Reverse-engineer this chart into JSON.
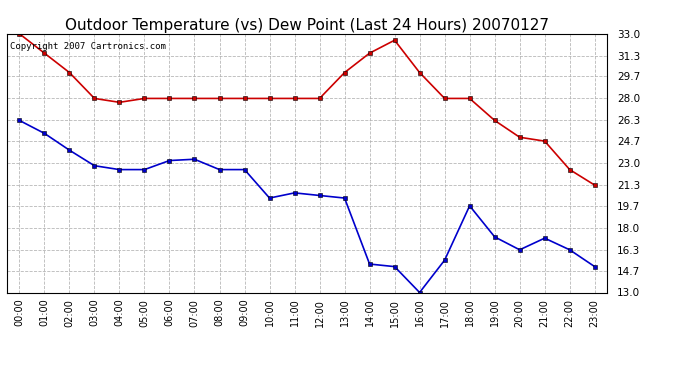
{
  "title": "Outdoor Temperature (vs) Dew Point (Last 24 Hours) 20070127",
  "copyright_text": "Copyright 2007 Cartronics.com",
  "hours": [
    0,
    1,
    2,
    3,
    4,
    5,
    6,
    7,
    8,
    9,
    10,
    11,
    12,
    13,
    14,
    15,
    16,
    17,
    18,
    19,
    20,
    21,
    22,
    23
  ],
  "temp_red": [
    33.0,
    31.5,
    30.0,
    28.0,
    27.7,
    28.0,
    28.0,
    28.0,
    28.0,
    28.0,
    28.0,
    28.0,
    28.0,
    30.0,
    31.5,
    32.5,
    30.0,
    28.0,
    28.0,
    26.3,
    25.0,
    24.7,
    22.5,
    21.3
  ],
  "dew_blue": [
    26.3,
    25.3,
    24.0,
    22.8,
    22.5,
    22.5,
    23.2,
    23.3,
    22.5,
    22.5,
    20.3,
    20.7,
    20.5,
    20.3,
    15.2,
    15.0,
    13.0,
    15.5,
    19.7,
    17.3,
    16.3,
    17.2,
    16.3,
    15.0
  ],
  "ylim_min": 13.0,
  "ylim_max": 33.0,
  "yticks": [
    13.0,
    14.7,
    16.3,
    18.0,
    19.7,
    21.3,
    23.0,
    24.7,
    26.3,
    28.0,
    29.7,
    31.3,
    33.0
  ],
  "red_color": "#cc0000",
  "blue_color": "#0000cc",
  "bg_color": "#ffffff",
  "grid_color": "#b0b0b0",
  "title_fontsize": 11,
  "copyright_fontsize": 6.5,
  "figwidth": 6.9,
  "figheight": 3.75,
  "dpi": 100
}
